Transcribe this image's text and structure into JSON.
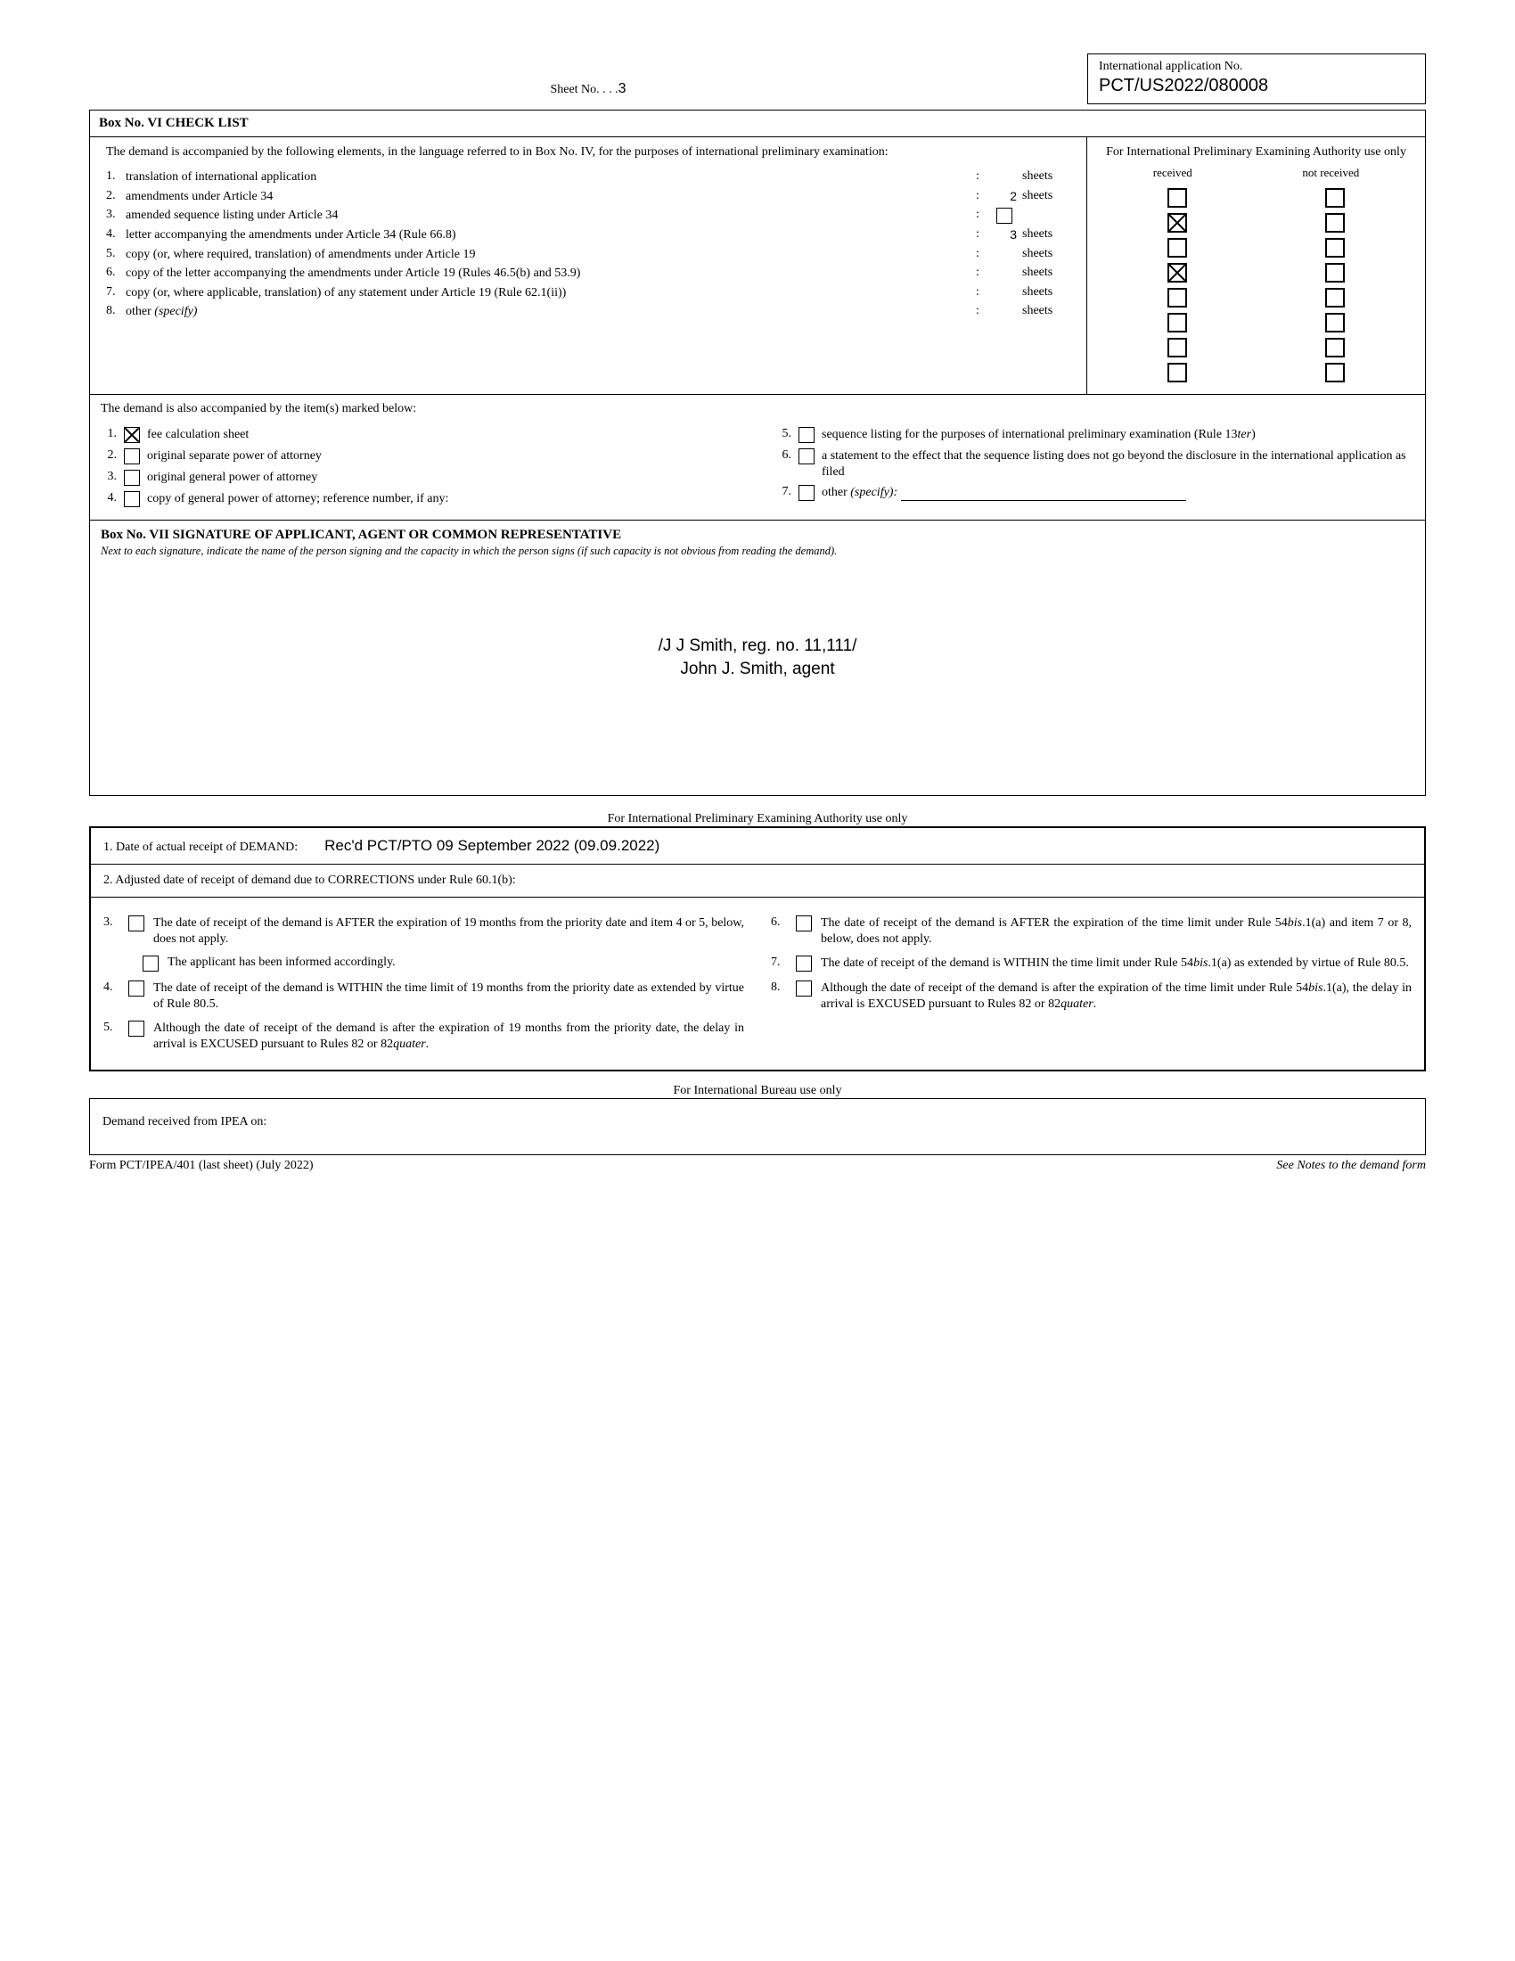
{
  "sheet": {
    "label": "Sheet No. . . .",
    "number": "3"
  },
  "appNo": {
    "label": "International application No.",
    "value": "PCT/US2022/080008"
  },
  "boxVI": {
    "title": "Box No. VI   CHECK LIST",
    "intro": "The demand is accompanied by the following elements, in the language referred to in Box No. IV, for the purposes of international preliminary examination:",
    "rightHead": "For International Preliminary Examining Authority use only",
    "col1": "received",
    "col2": "not received",
    "items": [
      {
        "n": "1.",
        "text": "translation of international application",
        "count": "",
        "countBox": false,
        "sheets": "sheets",
        "recv": false,
        "nrecv": false
      },
      {
        "n": "2.",
        "text": "amendments under Article 34",
        "count": "2",
        "countBox": false,
        "sheets": "sheets",
        "recv": true,
        "nrecv": false
      },
      {
        "n": "3.",
        "text": "amended sequence listing under Article 34",
        "count": "",
        "countBox": true,
        "sheets": "",
        "recv": false,
        "nrecv": false
      },
      {
        "n": "4.",
        "text": "letter accompanying the amendments under Article 34 (Rule 66.8)",
        "count": "3",
        "countBox": false,
        "sheets": "sheets",
        "recv": true,
        "nrecv": false
      },
      {
        "n": "5.",
        "text": "copy (or, where required, translation) of amendments under Article 19",
        "count": "",
        "countBox": false,
        "sheets": "sheets",
        "recv": false,
        "nrecv": false
      },
      {
        "n": "6.",
        "text": "copy of the letter accompanying the amendments under Article 19 (Rules 46.5(b) and 53.9)",
        "count": "",
        "countBox": false,
        "sheets": "sheets",
        "recv": false,
        "nrecv": false
      },
      {
        "n": "7.",
        "text": "copy (or, where applicable, translation) of any statement under Article 19 (Rule 62.1(ii))",
        "count": "",
        "countBox": false,
        "sheets": "sheets",
        "recv": false,
        "nrecv": false
      },
      {
        "n": "8.",
        "text_pre": "other ",
        "text_it": "(specify)",
        "count": "",
        "countBox": false,
        "sheets": "sheets",
        "recv": false,
        "nrecv": false
      }
    ],
    "alsoIntro": "The demand is also accompanied by the item(s) marked below:",
    "alsoLeft": [
      {
        "n": "1.",
        "checked": true,
        "text": "fee calculation sheet"
      },
      {
        "n": "2.",
        "checked": false,
        "text": "original separate power of attorney"
      },
      {
        "n": "3.",
        "checked": false,
        "text": "original general power of attorney"
      },
      {
        "n": "4.",
        "checked": false,
        "text": "copy of general power of attorney; reference number, if any:"
      }
    ],
    "alsoRight": [
      {
        "n": "5.",
        "checked": false,
        "text_pre": "sequence listing for the purposes of international preliminary examination (Rule 13",
        "text_it": "ter",
        "text_post": ")"
      },
      {
        "n": "6.",
        "checked": false,
        "text": "a statement to the effect that the sequence listing does not go beyond the disclosure in the international application as filed"
      },
      {
        "n": "7.",
        "checked": false,
        "text_pre": "other ",
        "text_it": "(specify):",
        "line": true
      }
    ]
  },
  "boxVII": {
    "title": "Box No. VII  SIGNATURE OF APPLICANT, AGENT  OR  COMMON REPRESENTATIVE",
    "sub": "Next to each signature, indicate the name of the person signing and the capacity in which the person signs (if such capacity is not obvious from reading the demand).",
    "sig1": "/J J Smith, reg. no. 11,111/",
    "sig2": "John J. Smith, agent"
  },
  "ipea": {
    "label": "For International Preliminary Examining Authority use only",
    "row1label": "1.  Date of actual receipt of DEMAND:",
    "row1value": "Rec'd PCT/PTO 09 September 2022 (09.09.2022)",
    "row2": "2.  Adjusted date of receipt of demand due to CORRECTIONS  under Rule 60.1(b):",
    "left": [
      {
        "n": "3.",
        "text": "The date of receipt of the demand is AFTER the expiration of 19 months from the priority date and item 4 or 5, below, does not apply.",
        "sub": "The applicant has been informed accordingly."
      },
      {
        "n": "4.",
        "text": "The date of receipt of the demand is WITHIN the time limit of 19 months from the priority date as extended by virtue of Rule 80.5."
      },
      {
        "n": "5.",
        "text_parts": [
          "Although the date of receipt of the demand is after the expiration of 19 months from the priority date, the delay in arrival is EXCUSED pursuant to Rules 82 or 82",
          "quater",
          "."
        ]
      }
    ],
    "right": [
      {
        "n": "6.",
        "text_parts": [
          "The date of receipt of the demand is AFTER the expiration of the time limit under Rule 54",
          "bis",
          ".1(a) and item 7 or 8, below, does not apply."
        ]
      },
      {
        "n": "7.",
        "text_parts": [
          "The date of receipt of the demand is WITHIN the time limit under Rule 54",
          "bis",
          ".1(a) as extended by virtue of Rule 80.5."
        ]
      },
      {
        "n": "8.",
        "text_parts": [
          "Although the date of receipt of the demand is after the expiration of the time limit under Rule 54",
          "bis",
          ".1(a), the delay in arrival is EXCUSED pursuant to Rules 82 or 82",
          "quater",
          "."
        ]
      }
    ]
  },
  "ib": {
    "label": "For International Bureau use only",
    "text": "Demand received from IPEA on:"
  },
  "footer": {
    "left": "Form PCT/IPEA/401 (last sheet) (July 2022)",
    "right": "See Notes to the demand form"
  }
}
